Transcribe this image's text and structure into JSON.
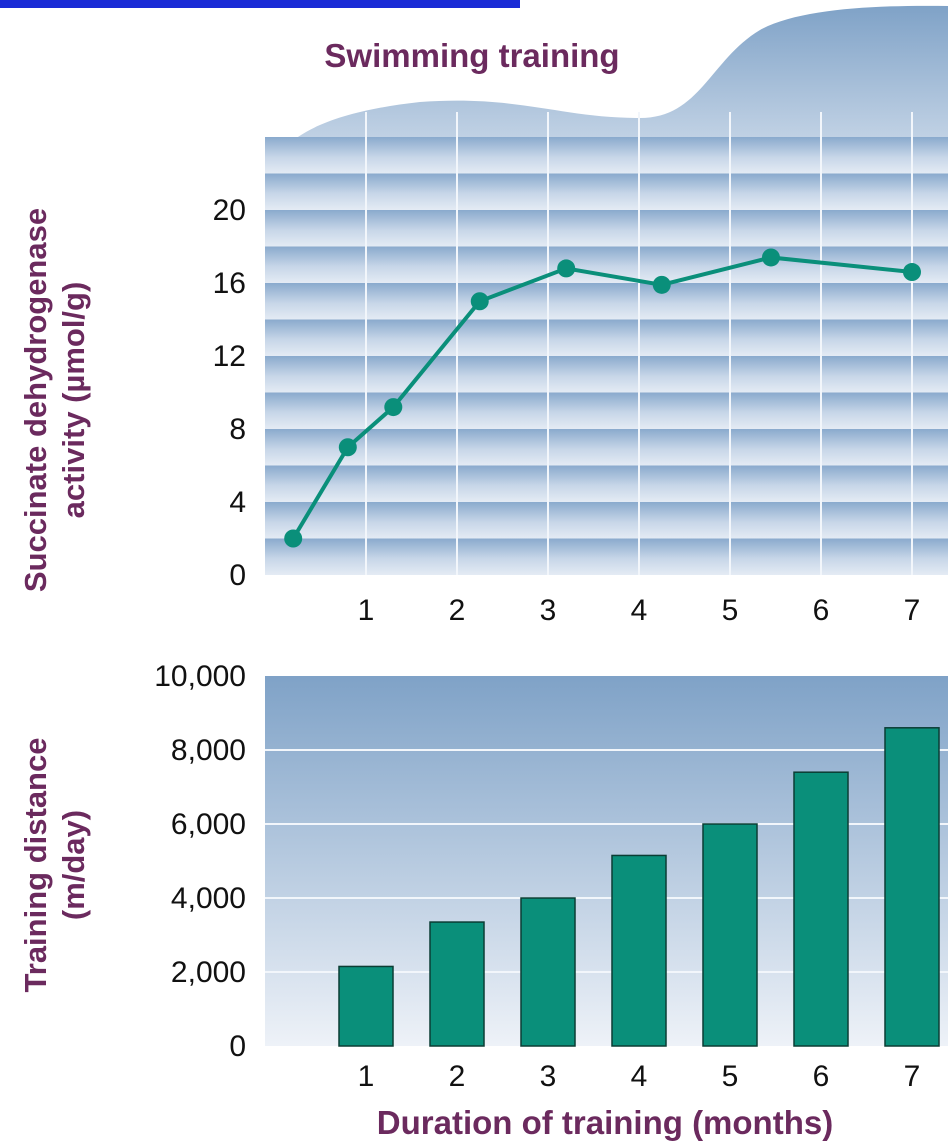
{
  "colors": {
    "accent": "#0a8f7a",
    "label": "#6b2a5e",
    "band_dark": "#8aaacd",
    "band_light": "#e4ebf4",
    "header_top": "#7fa2c7",
    "cut_text": "#1a2bd6"
  },
  "chart_data": [
    {
      "type": "line",
      "title": "Swimming training",
      "ylabel_line1": "Succinate dehydrogenase",
      "ylabel_line2": "activity (µmol/g)",
      "xlabel": "",
      "x": [
        0.2,
        0.8,
        1.3,
        2.25,
        3.2,
        4.25,
        5.45,
        7.0
      ],
      "y": [
        2.0,
        7.0,
        9.2,
        15.0,
        16.8,
        15.9,
        17.4,
        16.6
      ],
      "xticks": [
        "1",
        "2",
        "3",
        "4",
        "5",
        "6",
        "7"
      ],
      "yticks": [
        "0",
        "4",
        "8",
        "12",
        "16",
        "20"
      ],
      "ylim": [
        0,
        20
      ],
      "xlim": [
        0,
        7.4
      ],
      "grid": true
    },
    {
      "type": "bar",
      "categories": [
        "1",
        "2",
        "3",
        "4",
        "5",
        "6",
        "7"
      ],
      "values": [
        2150,
        3350,
        4000,
        5150,
        6000,
        7400,
        8600
      ],
      "ylabel_line1": "Training distance",
      "ylabel_line2": "(m/day)",
      "xlabel": "Duration of training (months)",
      "yticks": [
        "0",
        "2,000",
        "4,000",
        "6,000",
        "8,000",
        "10,000"
      ],
      "ylim": [
        0,
        10000
      ],
      "grid": true
    }
  ]
}
